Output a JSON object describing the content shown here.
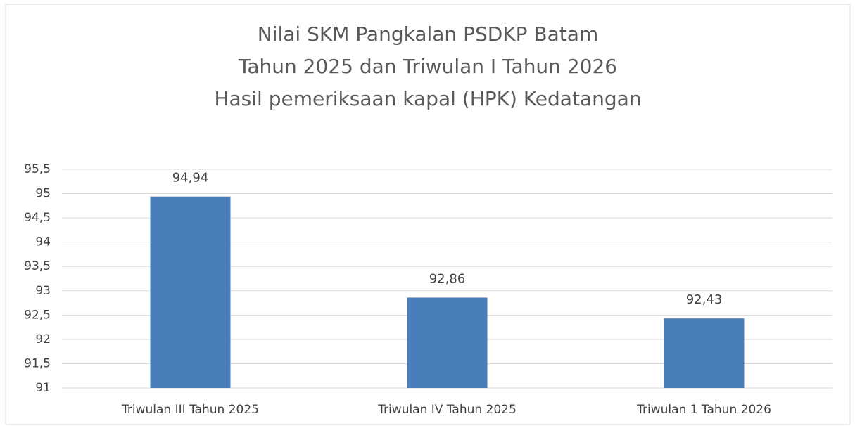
{
  "chart_data": {
    "type": "bar",
    "title": [
      "Nilai SKM  Pangkalan PSDKP Batam",
      "Tahun 2025 dan Triwulan I Tahun 2026",
      "Hasil pemeriksaan kapal (HPK) Kedatangan"
    ],
    "categories": [
      "Triwulan III Tahun 2025",
      "Triwulan IV Tahun 2025",
      "Triwulan 1 Tahun 2026"
    ],
    "values": [
      94.94,
      92.86,
      92.43
    ],
    "value_labels": [
      "94,94",
      "92,86",
      "92,43"
    ],
    "color": "#4a7ebb",
    "ylim": [
      91,
      95.5
    ],
    "yticks": [
      91,
      {
        "value": 91.5,
        "label": "91,5"
      },
      92,
      {
        "value": 92.5,
        "label": "92,5"
      },
      93,
      {
        "value": 93.5,
        "label": "93,5"
      },
      94,
      {
        "value": 94.5,
        "label": "94,5"
      },
      95,
      {
        "value": 95.5,
        "label": "95,5"
      }
    ],
    "grid": true
  }
}
